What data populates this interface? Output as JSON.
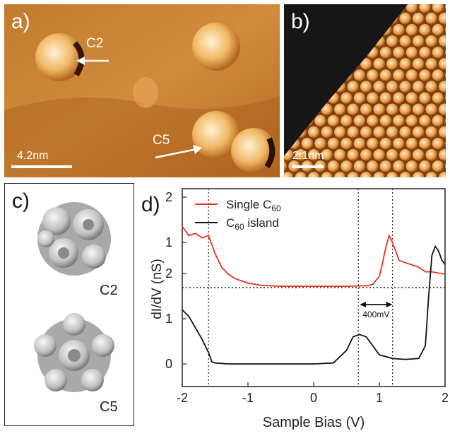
{
  "panels": {
    "a": {
      "label": "a)",
      "annotations": [
        "C2",
        "C5"
      ],
      "scale": "4.2nm"
    },
    "b": {
      "label": "b)",
      "scale": "2.1nm"
    },
    "c": {
      "label": "c)",
      "models": [
        "C2",
        "C5"
      ]
    },
    "d": {
      "label": "d)"
    }
  },
  "colors": {
    "single": "#e8331f",
    "island": "#111111",
    "stm_dark": "#7a3e0e",
    "stm_light": "#f6c680"
  },
  "chart_data": {
    "type": "line",
    "xlabel": "Sample Bias (V)",
    "ylabel": "dI/dV (nS)",
    "xlim": [
      -2,
      2
    ],
    "xticks": [
      "-2",
      "-1",
      "0",
      "1",
      "2"
    ],
    "yticks_upper": [
      "1",
      "2"
    ],
    "yticks_lower": [
      "0",
      "1",
      "2"
    ],
    "annotation": "400mV",
    "series": [
      {
        "name": "Single C60",
        "legend_main": "Single C",
        "legend_sub": "60",
        "x": [
          -2.0,
          -1.9,
          -1.8,
          -1.7,
          -1.6,
          -1.5,
          -1.4,
          -1.3,
          -1.2,
          -1.0,
          -0.8,
          -0.5,
          0.0,
          0.5,
          0.8,
          0.9,
          1.0,
          1.05,
          1.1,
          1.15,
          1.2,
          1.25,
          1.3,
          1.4,
          1.5,
          1.6,
          1.7,
          1.8,
          1.9,
          2.0
        ],
        "y": [
          1.35,
          1.15,
          1.2,
          1.1,
          1.15,
          0.75,
          0.45,
          0.3,
          0.2,
          0.1,
          0.05,
          0.03,
          0.03,
          0.03,
          0.04,
          0.07,
          0.25,
          0.55,
          0.9,
          1.15,
          1.0,
          0.8,
          0.6,
          0.55,
          0.5,
          0.45,
          0.35,
          0.35,
          0.32,
          0.3
        ]
      },
      {
        "name": "C60 island",
        "legend_main": "C",
        "legend_sub": "60",
        "legend_rest": " island",
        "x": [
          -2.0,
          -1.9,
          -1.8,
          -1.7,
          -1.6,
          -1.55,
          -1.5,
          -1.3,
          -1.0,
          -0.5,
          0.0,
          0.3,
          0.5,
          0.6,
          0.7,
          0.8,
          0.9,
          1.0,
          1.2,
          1.4,
          1.6,
          1.7,
          1.75,
          1.8,
          1.85,
          1.9,
          1.95,
          2.0
        ],
        "y": [
          1.2,
          1.05,
          0.8,
          0.55,
          0.25,
          0.05,
          0.02,
          0.0,
          0.0,
          0.0,
          0.0,
          0.02,
          0.3,
          0.6,
          0.65,
          0.6,
          0.4,
          0.2,
          0.12,
          0.1,
          0.12,
          0.4,
          1.5,
          2.4,
          2.6,
          2.5,
          2.3,
          2.2
        ]
      }
    ]
  }
}
